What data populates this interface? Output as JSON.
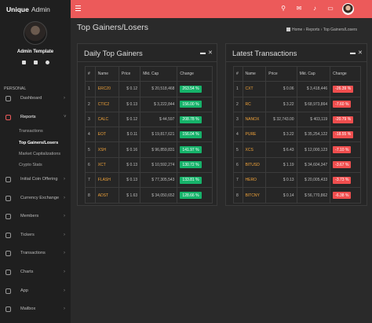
{
  "app": {
    "brand_bold": "Unique",
    "brand_rest": "Admin"
  },
  "profile": {
    "name": "Admin Template"
  },
  "sidebar": {
    "section_label": "PERSONAL",
    "items": [
      {
        "label": "Dashboard",
        "has_children": true,
        "active": false
      },
      {
        "label": "Reports",
        "has_children": true,
        "active": true
      },
      {
        "label": "Initial Coin Offering",
        "has_children": true,
        "active": false
      },
      {
        "label": "Currency Exchange",
        "has_children": true,
        "active": false
      },
      {
        "label": "Members",
        "has_children": true,
        "active": false
      },
      {
        "label": "Tickers",
        "has_children": true,
        "active": false
      },
      {
        "label": "Transactions",
        "has_children": true,
        "active": false
      },
      {
        "label": "Charts",
        "has_children": true,
        "active": false
      },
      {
        "label": "App",
        "has_children": true,
        "active": false
      },
      {
        "label": "Mailbox",
        "has_children": true,
        "active": false
      }
    ],
    "reports_sub": [
      {
        "label": "Transactions",
        "current": false
      },
      {
        "label": "Top Gainers/Losers",
        "current": true
      },
      {
        "label": "Market Capitalizations",
        "current": false
      },
      {
        "label": "Crypto Stats",
        "current": false
      }
    ],
    "chevron": "›"
  },
  "topbar": {
    "accent": "#ec5a5a"
  },
  "header": {
    "title": "Top Gainers/Losers",
    "breadcrumb": [
      "Home",
      "Reports",
      "Top Gainers/Losers"
    ],
    "separator": "›"
  },
  "panels": {
    "gainers": {
      "title": "Daily Top Gainers",
      "columns": [
        "#",
        "Name",
        "Price",
        "Mkt. Cap",
        "Change"
      ],
      "rows": [
        {
          "n": "1",
          "name": "ERC20",
          "price": "$ 0.12",
          "cap": "$ 20,518,468",
          "change": "263.54 %"
        },
        {
          "n": "2",
          "name": "CTIC2",
          "price": "$ 0.13",
          "cap": "$ 3,222,844",
          "change": "156.00 %"
        },
        {
          "n": "3",
          "name": "CALC",
          "price": "$ 0.12",
          "cap": "$ 44,597",
          "change": "208.78 %"
        },
        {
          "n": "4",
          "name": "EOT",
          "price": "$ 0.11",
          "cap": "$ 19,817,621",
          "change": "156.04 %"
        },
        {
          "n": "5",
          "name": "XSH",
          "price": "$ 0.16",
          "cap": "$ 96,859,831",
          "change": "141.97 %"
        },
        {
          "n": "6",
          "name": "XCT",
          "price": "$ 0.13",
          "cap": "$ 10,592,274",
          "change": "130.72 %"
        },
        {
          "n": "7",
          "name": "FLASH",
          "price": "$ 0.13",
          "cap": "$ 77,305,543",
          "change": "133.81 %"
        },
        {
          "n": "8",
          "name": "ADST",
          "price": "$ 1.63",
          "cap": "$ 34,050,652",
          "change": "128.66 %"
        }
      ]
    },
    "transactions": {
      "title": "Latest Transactions",
      "columns": [
        "#",
        "Name",
        "Price",
        "Mkt. Cap",
        "Change"
      ],
      "rows": [
        {
          "n": "1",
          "name": "CXT",
          "price": "$ 0.06",
          "cap": "$ 3,418,446",
          "change": "-26.39 %"
        },
        {
          "n": "2",
          "name": "RC",
          "price": "$ 3.22",
          "cap": "$ 68,973,864",
          "change": "-7.60 %"
        },
        {
          "n": "3",
          "name": "NANOX",
          "price": "$ 32,743.00",
          "cap": "$ 403,119",
          "change": "-20.79 %"
        },
        {
          "n": "4",
          "name": "PURE",
          "price": "$ 3.22",
          "cap": "$ 35,254,122",
          "change": "-18.55 %"
        },
        {
          "n": "5",
          "name": "XCS",
          "price": "$ 6.43",
          "cap": "$ 12,000,123",
          "change": "-7.10 %"
        },
        {
          "n": "6",
          "name": "BITUSD",
          "price": "$ 1.19",
          "cap": "$ 34,604,347",
          "change": "-3.67 %"
        },
        {
          "n": "7",
          "name": "HERO",
          "price": "$ 0.13",
          "cap": "$ 20,005,433",
          "change": "-3.73 %"
        },
        {
          "n": "8",
          "name": "BITCNY",
          "price": "$ 0.14",
          "cap": "$ 56,770,862",
          "change": "-6.38 %"
        }
      ]
    }
  },
  "colors": {
    "gain": "#16b36a",
    "loss": "#f04e4e",
    "coin_name": "#f2a43a"
  }
}
